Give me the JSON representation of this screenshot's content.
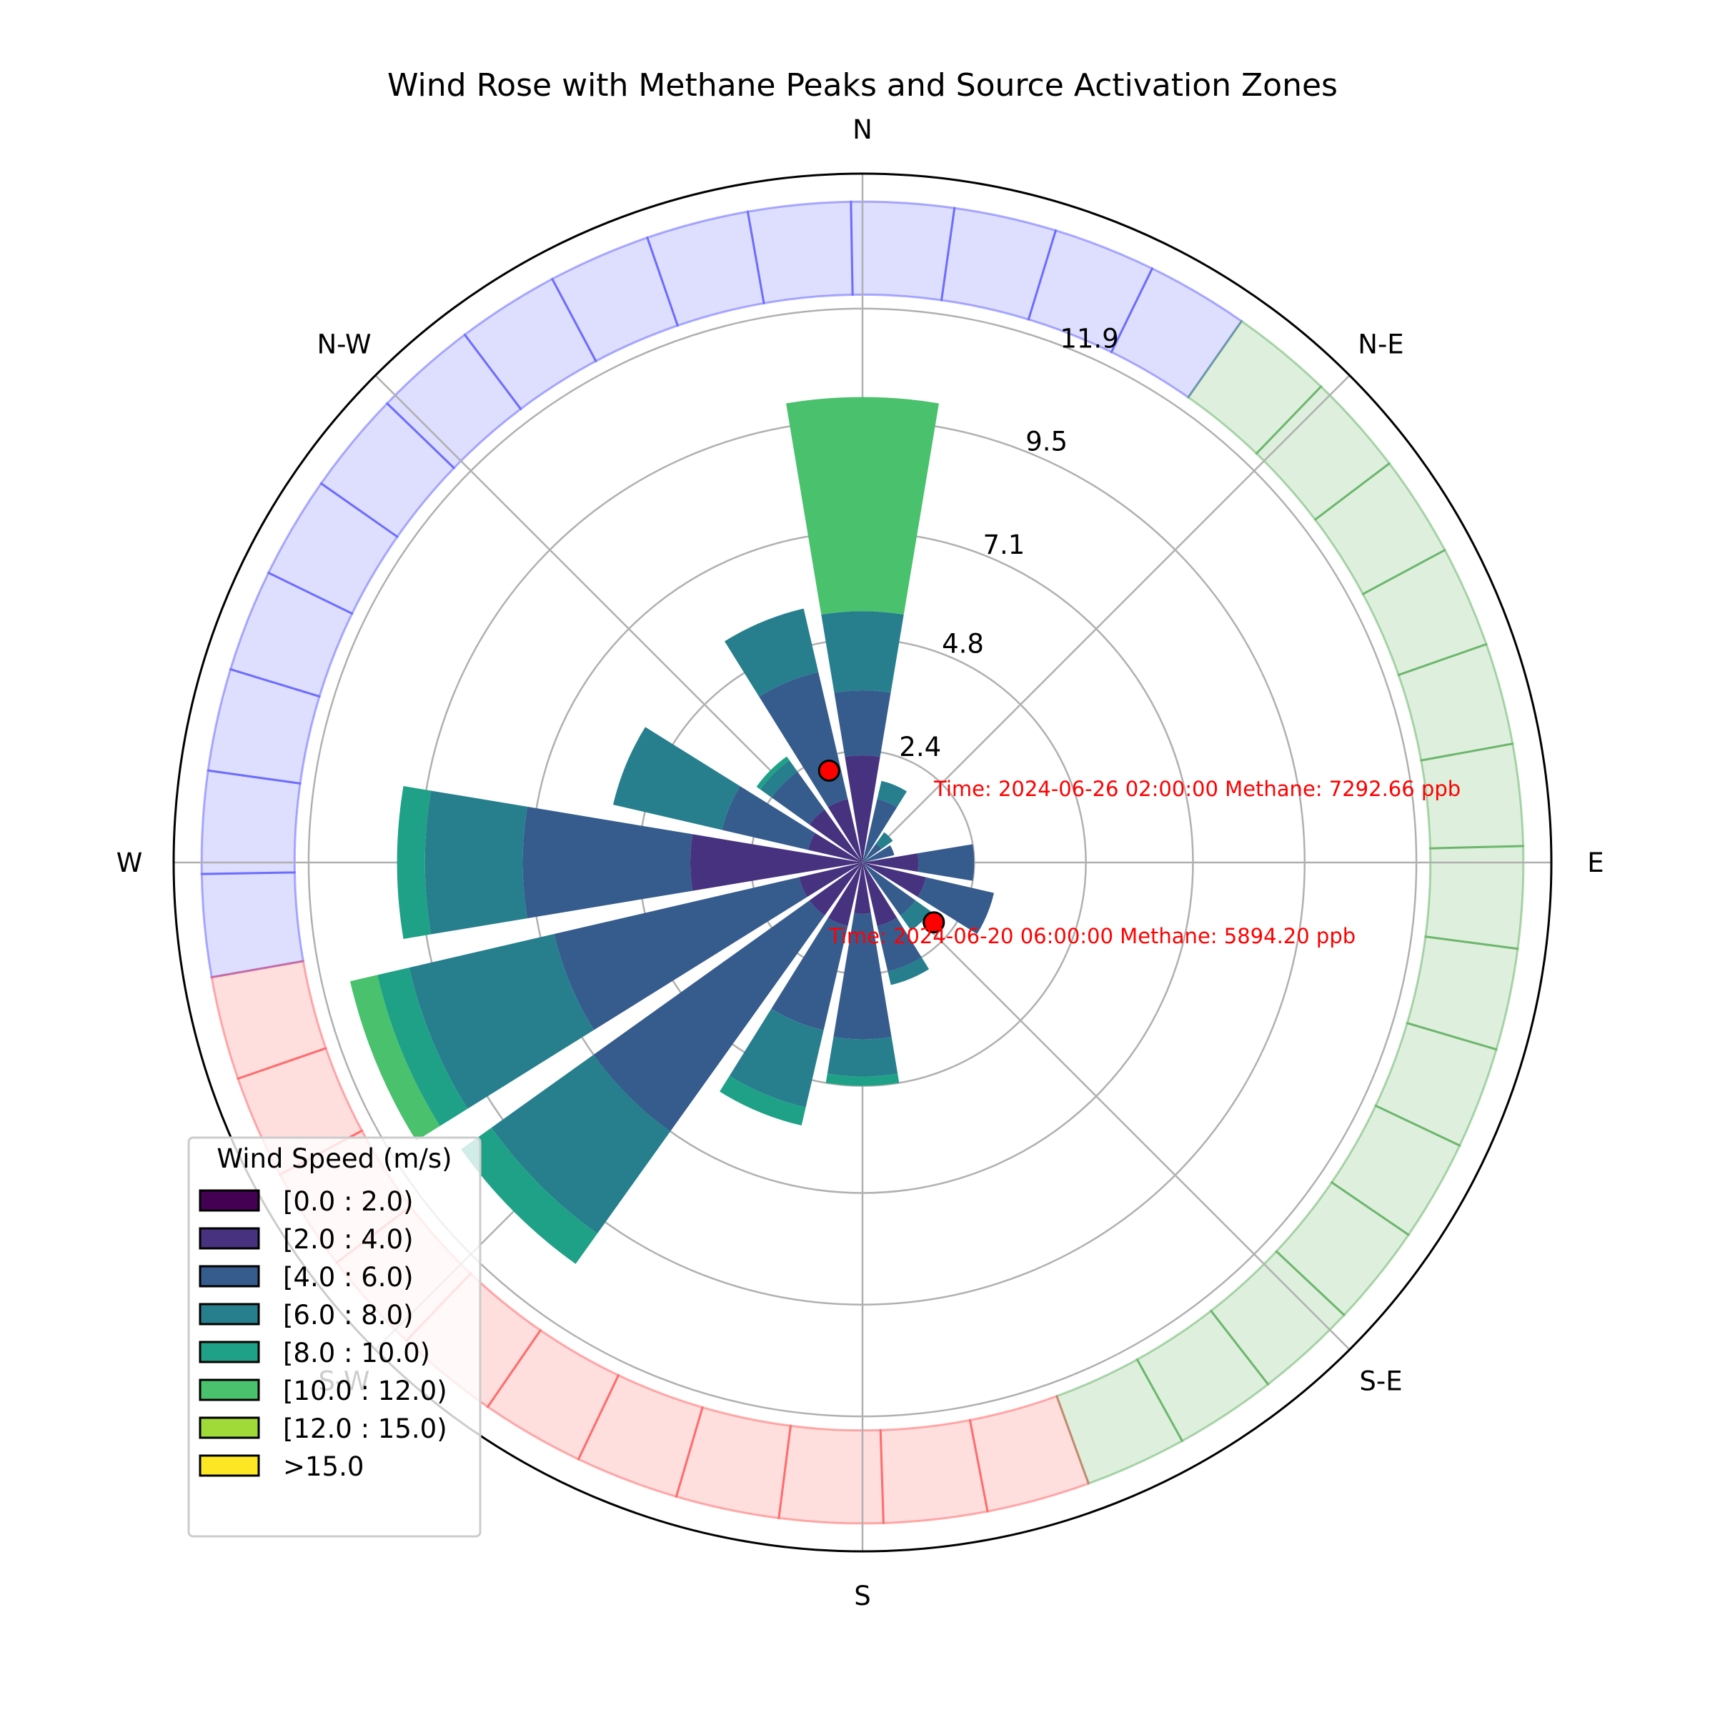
{
  "chart_data": {
    "type": "windrose",
    "title": "Wind Rose with Methane Peaks and Source Activation Zones",
    "direction_labels": [
      "N",
      "N-E",
      "E",
      "S-E",
      "S",
      "S-W",
      "W",
      "N-W"
    ],
    "ring_labels": [
      "2.4",
      "4.8",
      "7.1",
      "9.5",
      "11.9"
    ],
    "ring_values": [
      2.4,
      4.8,
      7.1,
      9.5,
      11.9
    ],
    "rmax": 14.8,
    "sector_count": 16,
    "legend": {
      "title": "Wind Speed (m/s)",
      "bins": [
        "[0.0 : 2.0)",
        "[2.0 : 4.0)",
        "[4.0 : 6.0)",
        "[6.0 : 8.0)",
        "[8.0 : 10.0)",
        "[10.0 : 12.0)",
        "[12.0 : 15.0)",
        ">15.0"
      ],
      "colors": [
        "#440154",
        "#46327e",
        "#365c8d",
        "#277f8e",
        "#1fa187",
        "#4ac16d",
        "#a0da39",
        "#fde725"
      ]
    },
    "sectors": [
      {
        "direction_deg": 0,
        "cumulative": [
          0.0,
          2.3,
          3.7,
          5.4,
          5.4,
          10.0
        ]
      },
      {
        "direction_deg": 22.5,
        "cumulative": [
          0.0,
          0.0,
          1.4,
          1.8
        ]
      },
      {
        "direction_deg": 45,
        "cumulative": [
          0.0,
          0.0,
          0.5,
          0.8
        ]
      },
      {
        "direction_deg": 67.5,
        "cumulative": [
          0.0,
          0.0,
          0.7
        ]
      },
      {
        "direction_deg": 90,
        "cumulative": [
          0.0,
          1.2,
          2.4
        ]
      },
      {
        "direction_deg": 112.5,
        "cumulative": [
          0.0,
          1.4,
          2.9
        ]
      },
      {
        "direction_deg": 135,
        "cumulative": [
          0.0,
          0.0,
          1.4,
          1.8
        ]
      },
      {
        "direction_deg": 157.5,
        "cumulative": [
          0.0,
          1.4,
          2.4,
          2.7
        ]
      },
      {
        "direction_deg": 180,
        "cumulative": [
          0.0,
          1.1,
          3.8,
          4.6,
          4.8
        ]
      },
      {
        "direction_deg": 202.5,
        "cumulative": [
          0.0,
          1.4,
          3.7,
          5.4,
          5.8
        ]
      },
      {
        "direction_deg": 225,
        "cumulative": [
          0.0,
          1.4,
          7.1,
          9.8,
          10.6
        ]
      },
      {
        "direction_deg": 247.5,
        "cumulative": [
          0.0,
          1.4,
          6.8,
          10.0,
          10.7,
          11.3
        ]
      },
      {
        "direction_deg": 270,
        "cumulative": [
          0.0,
          3.7,
          7.3,
          9.4,
          10.0
        ]
      },
      {
        "direction_deg": 292.5,
        "cumulative": [
          0.0,
          1.2,
          3.1,
          5.5
        ]
      },
      {
        "direction_deg": 315,
        "cumulative": [
          0.0,
          1.4,
          2.4,
          2.7,
          2.8
        ]
      },
      {
        "direction_deg": 337.5,
        "cumulative": [
          0.0,
          1.4,
          4.2,
          5.6
        ]
      }
    ],
    "zones": [
      {
        "name": "north-west-zone",
        "start_deg": 260,
        "end_deg": 395,
        "color": "#0000ff"
      },
      {
        "name": "east-zone",
        "start_deg": 35,
        "end_deg": 160,
        "color": "#008000"
      },
      {
        "name": "south-west-zone",
        "start_deg": 160,
        "end_deg": 260,
        "color": "#ff0000"
      }
    ],
    "methane_peaks": [
      {
        "label": "Time: 2024-06-26 02:00:00 Methane: 7292.66 ppb",
        "direction_deg": 340,
        "speed": 2.1
      },
      {
        "label": "Time: 2024-06-20 06:00:00 Methane: 5894.20 ppb",
        "direction_deg": 130,
        "speed": 2.0
      }
    ]
  }
}
